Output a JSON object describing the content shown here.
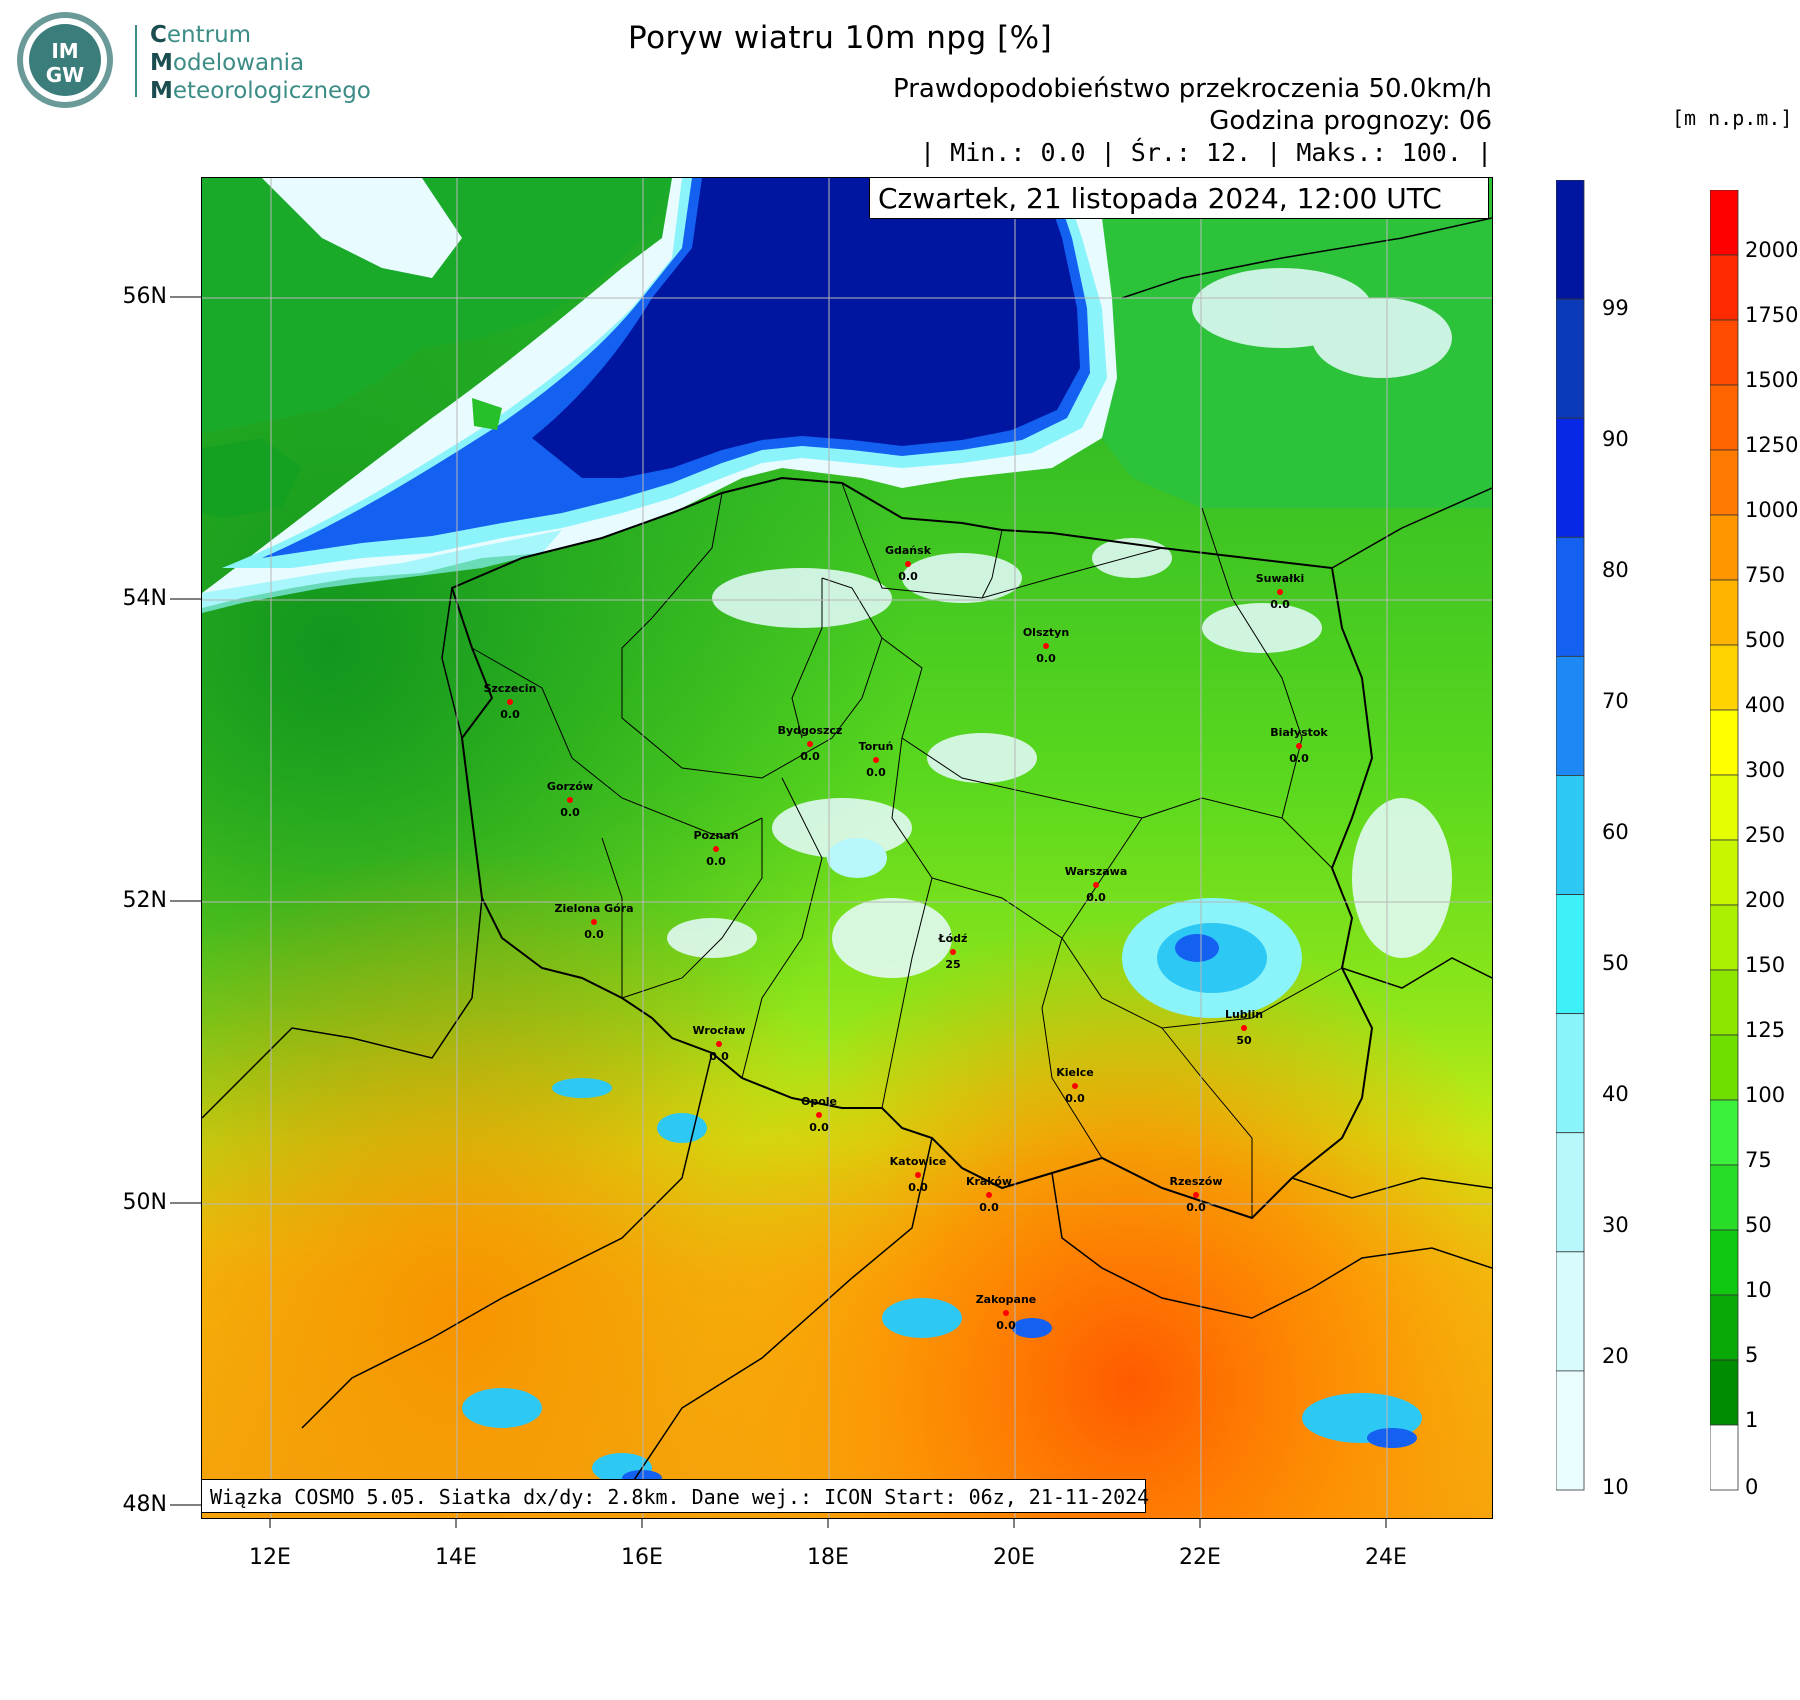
{
  "logo": {
    "badge_top": "IM",
    "badge_bottom": "GW",
    "line1_initial": "C",
    "line1_rest": "entrum",
    "line2_initial": "M",
    "line2_rest": "odelowania",
    "line3_initial": "M",
    "line3_rest": "eteorologicznego"
  },
  "header": {
    "title": "Poryw wiatru 10m npg [%]",
    "subtitle1": "Prawdopodobieństwo przekroczenia 50.0km/h",
    "subtitle2": "Godzina prognozy: 06",
    "stats": "| Min.:     0.0 | Śr.:      12. | Maks.:    100. |"
  },
  "date_label": "Czwartek, 21 listopada 2024, 12:00 UTC",
  "info_label": "Wiązka COSMO 5.05. Siatka dx/dy: 2.8km. Dane wej.: ICON Start: 06z, 21-11-2024",
  "axes": {
    "lat_labels": [
      "56N",
      "54N",
      "52N",
      "50N",
      "48N"
    ],
    "lon_labels": [
      "12E",
      "14E",
      "16E",
      "18E",
      "20E",
      "22E",
      "24E"
    ]
  },
  "colorbar_probability": {
    "labels": [
      "99",
      "90",
      "80",
      "70",
      "60",
      "50",
      "40",
      "30",
      "20",
      "10"
    ],
    "colors": [
      "#0016a0",
      "#0a3ab8",
      "#0828e8",
      "#1460f0",
      "#1e88f5",
      "#2ec8f5",
      "#3ef0f8",
      "#8af4fa",
      "#b8f8fc",
      "#d8fcfe",
      "#eafeff"
    ]
  },
  "colorbar_elevation": {
    "unit": "[m n.p.m.]",
    "labels": [
      "2000",
      "1750",
      "1500",
      "1250",
      "1000",
      "750",
      "500",
      "400",
      "300",
      "250",
      "200",
      "150",
      "125",
      "100",
      "75",
      "50",
      "10",
      "5",
      "1",
      "0"
    ],
    "colors": [
      "#ff0000",
      "#ff2a00",
      "#ff4a00",
      "#ff6400",
      "#ff7a00",
      "#ff9600",
      "#ffb400",
      "#ffd200",
      "#ffff00",
      "#e6ff00",
      "#c8f500",
      "#aaf000",
      "#8ce600",
      "#6ee000",
      "#3cf03c",
      "#28dc28",
      "#10c810",
      "#08aa08",
      "#008c00",
      "#ffffff"
    ]
  },
  "cities": [
    {
      "name": "Gdańsk",
      "value": "0.0"
    },
    {
      "name": "Suwałki",
      "value": "0.0"
    },
    {
      "name": "Olsztyn",
      "value": "0.0"
    },
    {
      "name": "Szczecin",
      "value": "0.0"
    },
    {
      "name": "Białystok",
      "value": "0.0"
    },
    {
      "name": "Bydgoszcz",
      "value": "0.0"
    },
    {
      "name": "Toruń",
      "value": "0.0"
    },
    {
      "name": "Gorzów",
      "value": "0.0"
    },
    {
      "name": "Poznań",
      "value": "0.0"
    },
    {
      "name": "Warszawa",
      "value": "0.0"
    },
    {
      "name": "Zielona Góra",
      "value": "0.0"
    },
    {
      "name": "Łódź",
      "value": "25"
    },
    {
      "name": "Lublin",
      "value": "50"
    },
    {
      "name": "Wrocław",
      "value": "0.0"
    },
    {
      "name": "Kielce",
      "value": "0.0"
    },
    {
      "name": "Opole",
      "value": "0.0"
    },
    {
      "name": "Katowice",
      "value": "0.0"
    },
    {
      "name": "Kraków",
      "value": "0.0"
    },
    {
      "name": "Rzeszów",
      "value": "0.0"
    },
    {
      "name": "Zakopane",
      "value": "0.0"
    }
  ]
}
